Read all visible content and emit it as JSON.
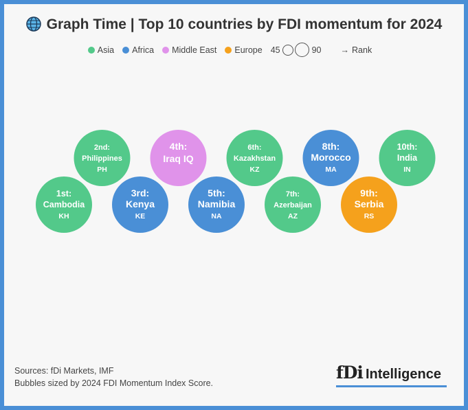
{
  "header": {
    "title": "Graph Time | Top 10 countries by FDI momentum for 2024",
    "icon": "globe-icon"
  },
  "legend": {
    "regions": [
      {
        "label": "Asia",
        "color": "#53c98a"
      },
      {
        "label": "Africa",
        "color": "#4a8fd6"
      },
      {
        "label": "Middle East",
        "color": "#e093ea"
      },
      {
        "label": "Europe",
        "color": "#f5a11c"
      }
    ],
    "size_min": "45",
    "size_max": "90",
    "rank_label": "Rank",
    "rank_arrow": "→"
  },
  "chart_data": {
    "type": "bubble",
    "title": "Top 10 countries by FDI momentum for 2024",
    "size_measure": "2024 FDI Momentum Index Score",
    "size_legend_range": [
      45,
      90
    ],
    "region_colors": {
      "Asia": "#53c98a",
      "Africa": "#4a8fd6",
      "Middle East": "#e093ea",
      "Europe": "#f5a11c"
    },
    "points": [
      {
        "rank": 1,
        "rank_label": "1st:",
        "country": "Cambodia",
        "code": "KH",
        "region": "Asia",
        "row": "lower"
      },
      {
        "rank": 2,
        "rank_label": "2nd:",
        "country": "Philippines",
        "code": "PH",
        "region": "Asia",
        "row": "upper"
      },
      {
        "rank": 3,
        "rank_label": "3rd:",
        "country": "Kenya",
        "code": "KE",
        "region": "Africa",
        "row": "lower"
      },
      {
        "rank": 4,
        "rank_label": "4th:",
        "country": "Iraq",
        "code": "IQ",
        "region": "Middle East",
        "row": "upper"
      },
      {
        "rank": 5,
        "rank_label": "5th:",
        "country": "Namibia",
        "code": "NA",
        "region": "Africa",
        "row": "lower"
      },
      {
        "rank": 6,
        "rank_label": "6th:",
        "country": "Kazakhstan",
        "code": "KZ",
        "region": "Asia",
        "row": "upper"
      },
      {
        "rank": 7,
        "rank_label": "7th:",
        "country": "Azerbaijan",
        "code": "AZ",
        "region": "Asia",
        "row": "lower"
      },
      {
        "rank": 8,
        "rank_label": "8th:",
        "country": "Morocco",
        "code": "MA",
        "region": "Africa",
        "row": "upper"
      },
      {
        "rank": 9,
        "rank_label": "9th:",
        "country": "Serbia",
        "code": "RS",
        "region": "Europe",
        "row": "lower"
      },
      {
        "rank": 10,
        "rank_label": "10th:",
        "country": "India",
        "code": "IN",
        "region": "Asia",
        "row": "upper"
      }
    ]
  },
  "footer": {
    "sources": "Sources: fDi Markets, IMF",
    "note": "Bubbles sized by 2024 FDI Momentum Index Score.",
    "logo_fdi": "fDi",
    "logo_intelligence": "Intelligence"
  }
}
